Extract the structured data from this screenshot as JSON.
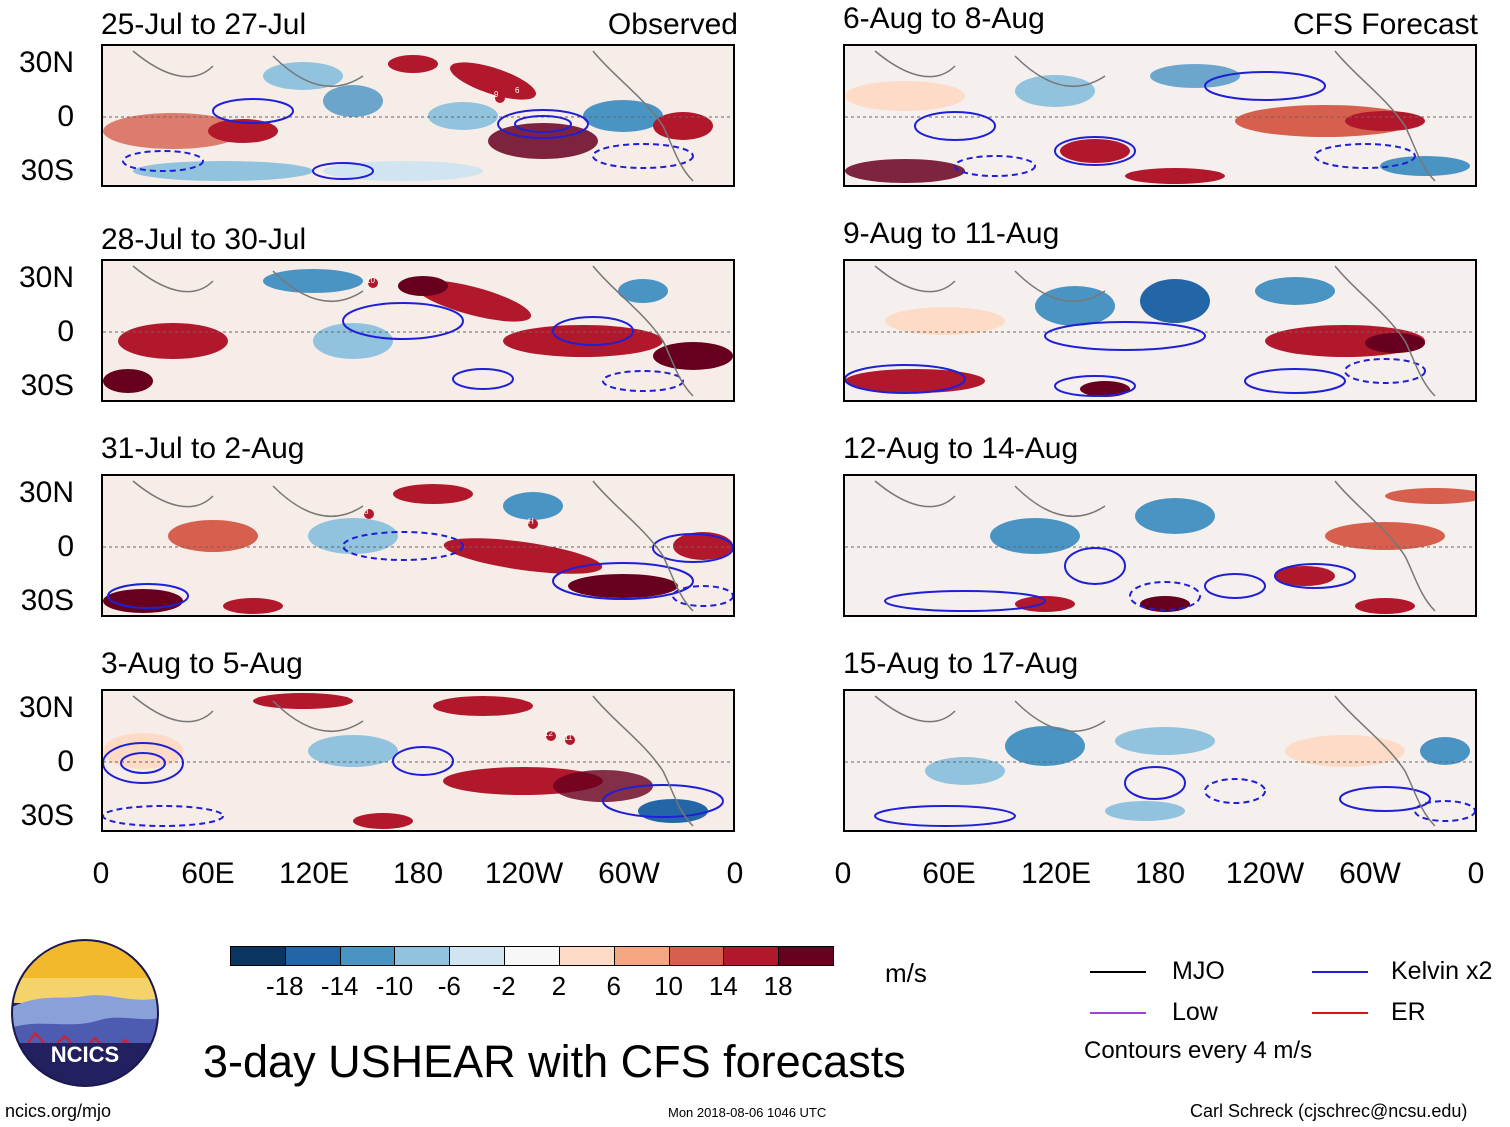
{
  "figure": {
    "title": "3-day USHEAR with CFS forecasts",
    "timestamp": "Mon 2018-08-06 1046 UTC",
    "website": "ncics.org/mjo",
    "credit": "Carl Schreck (cjschrec@ncsu.edu)",
    "logo_text": "NCICS"
  },
  "columns": {
    "observed_label": "Observed",
    "forecast_label": "CFS Forecast"
  },
  "panels": {
    "observed": [
      {
        "title": "25-Jul to 27-Jul"
      },
      {
        "title": "28-Jul to 30-Jul"
      },
      {
        "title": "31-Jul to 2-Aug"
      },
      {
        "title": "3-Aug to 5-Aug"
      }
    ],
    "forecast": [
      {
        "title": "6-Aug to 8-Aug"
      },
      {
        "title": "9-Aug to 11-Aug"
      },
      {
        "title": "12-Aug to 14-Aug"
      },
      {
        "title": "15-Aug to 17-Aug"
      }
    ]
  },
  "storms": [
    {
      "panel": 0,
      "ids": [
        "9",
        "6"
      ]
    },
    {
      "panel": 1,
      "ids": [
        "10"
      ]
    },
    {
      "panel": 2,
      "ids": [
        "8",
        "H"
      ]
    },
    {
      "panel": 3,
      "ids": [
        "12",
        "11"
      ]
    }
  ],
  "axes": {
    "y_ticks": [
      "30N",
      "0",
      "30S"
    ],
    "x_ticks": [
      "0",
      "60E",
      "120E",
      "180",
      "120W",
      "60W",
      "0"
    ]
  },
  "colorbar": {
    "unit": "m/s",
    "tick_labels": [
      "-18",
      "-14",
      "-10",
      "-6",
      "-2",
      "2",
      "6",
      "10",
      "14",
      "18"
    ],
    "colors": [
      "#0b3561",
      "#2366a8",
      "#4a94c4",
      "#91c2de",
      "#d1e5f0",
      "#f7f7f7",
      "#fddbc7",
      "#f4a582",
      "#d6604d",
      "#b2182b",
      "#67001f"
    ]
  },
  "legend": {
    "items": [
      {
        "label": "MJO",
        "color": "#000000"
      },
      {
        "label": "Kelvin x2",
        "color": "#1f1fd6"
      },
      {
        "label": "Low",
        "color": "#a040e0"
      },
      {
        "label": "ER",
        "color": "#e01010"
      }
    ],
    "note": "Contours every 4 m/s"
  }
}
